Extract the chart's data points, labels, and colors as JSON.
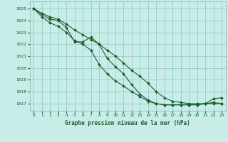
{
  "title": "Graphe pression niveau de la mer (hPa)",
  "bg_color": "#c8ede8",
  "plot_bg_color": "#c8ede8",
  "grid_color": "#88c8c0",
  "line_color": "#1a5c2a",
  "xlim": [
    -0.5,
    23.5
  ],
  "ylim": [
    1016.4,
    1025.6
  ],
  "yticks": [
    1017,
    1018,
    1019,
    1020,
    1021,
    1022,
    1023,
    1024,
    1025
  ],
  "xticks": [
    0,
    1,
    2,
    3,
    4,
    5,
    6,
    7,
    8,
    9,
    10,
    11,
    12,
    13,
    14,
    15,
    16,
    17,
    18,
    19,
    20,
    21,
    22,
    23
  ],
  "series1": [
    1025.0,
    1024.6,
    1024.3,
    1024.1,
    1023.7,
    1023.2,
    1022.8,
    1022.4,
    1022.0,
    1021.5,
    1021.0,
    1020.4,
    1019.8,
    1019.3,
    1018.7,
    1018.0,
    1017.5,
    1017.2,
    1017.1,
    1017.0,
    1017.0,
    1017.0,
    1017.0,
    1017.0
  ],
  "series2": [
    1025.0,
    1024.5,
    1024.1,
    1024.0,
    1023.4,
    1022.2,
    1022.2,
    1022.6,
    1022.0,
    1020.8,
    1020.1,
    1019.5,
    1018.6,
    1017.8,
    1017.3,
    1017.0,
    1016.9,
    1016.9,
    1016.9,
    1016.9,
    1016.9,
    1017.0,
    1017.4,
    1017.5
  ],
  "series3": [
    1025.0,
    1024.3,
    1023.8,
    1023.5,
    1023.0,
    1022.3,
    1022.0,
    1021.5,
    1020.3,
    1019.5,
    1018.9,
    1018.5,
    1018.0,
    1017.6,
    1017.2,
    1017.0,
    1016.9,
    1016.9,
    1016.9,
    1016.9,
    1016.9,
    1017.0,
    1017.1,
    1017.0
  ]
}
